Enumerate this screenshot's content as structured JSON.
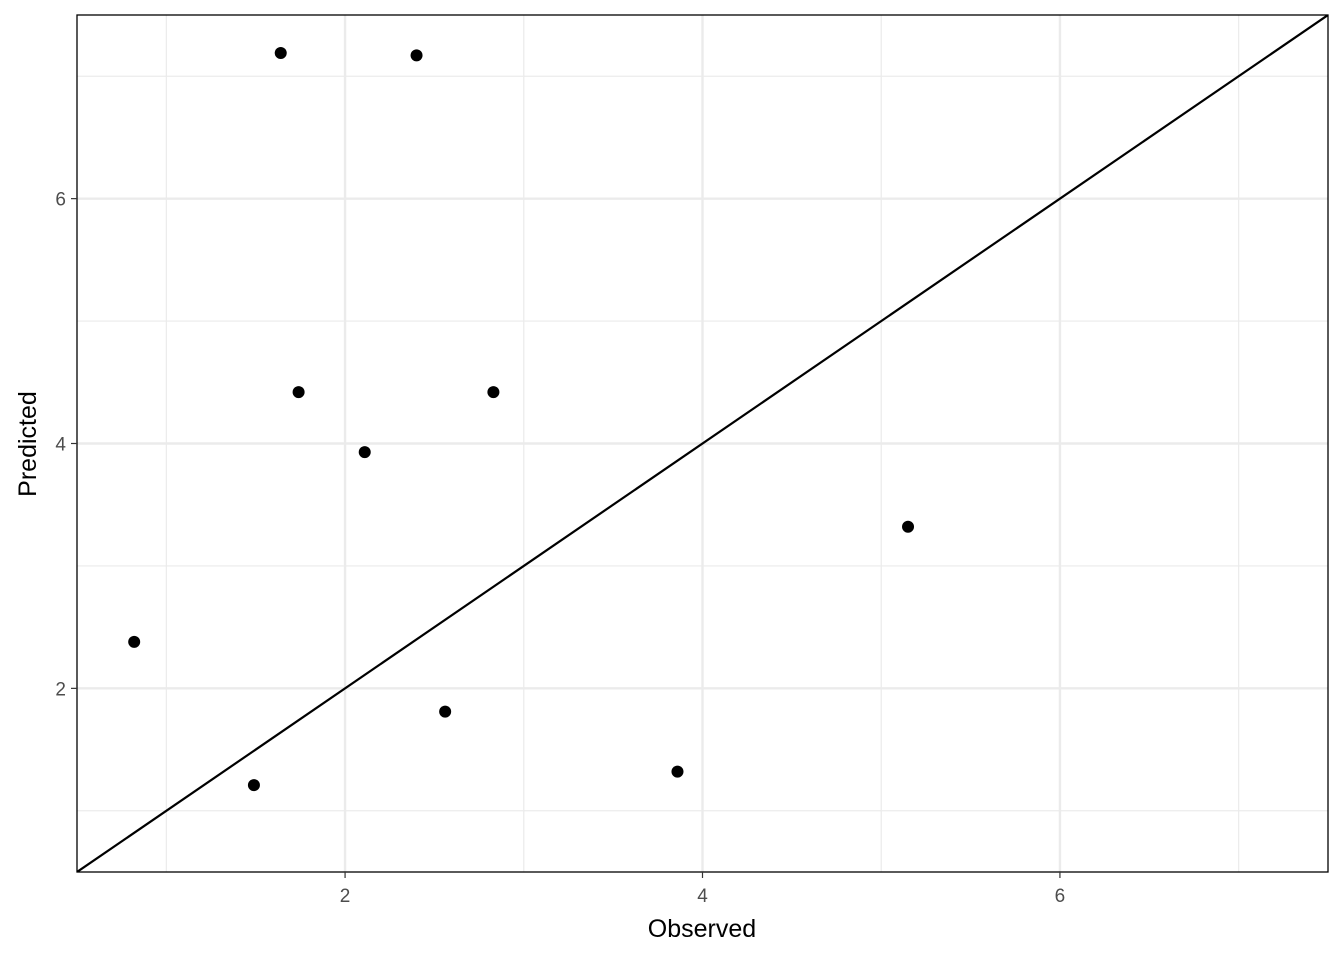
{
  "chart_data": {
    "type": "scatter",
    "x_label": "Observed",
    "y_label": "Predicted",
    "series": [
      {
        "color": "#000000",
        "x": [
          1.64,
          2.4,
          1.74,
          2.83,
          2.11,
          5.15,
          0.82,
          2.56,
          1.49,
          3.86
        ],
        "values": [
          7.19,
          7.17,
          4.42,
          4.42,
          3.93,
          3.32,
          2.38,
          1.81,
          1.21,
          1.32
        ]
      }
    ],
    "xlim": [
      0.5,
      7.5
    ],
    "ylim": [
      0.5,
      7.5
    ],
    "xticks": [
      2,
      4,
      6
    ],
    "yticks": [
      2,
      4,
      6
    ],
    "x_minor_grid": [
      1,
      3,
      5,
      7
    ],
    "y_minor_grid": [
      1,
      3,
      5,
      7
    ],
    "grid": true,
    "reference_line": {
      "slope": 1,
      "intercept": 0,
      "color": "#000000"
    }
  }
}
